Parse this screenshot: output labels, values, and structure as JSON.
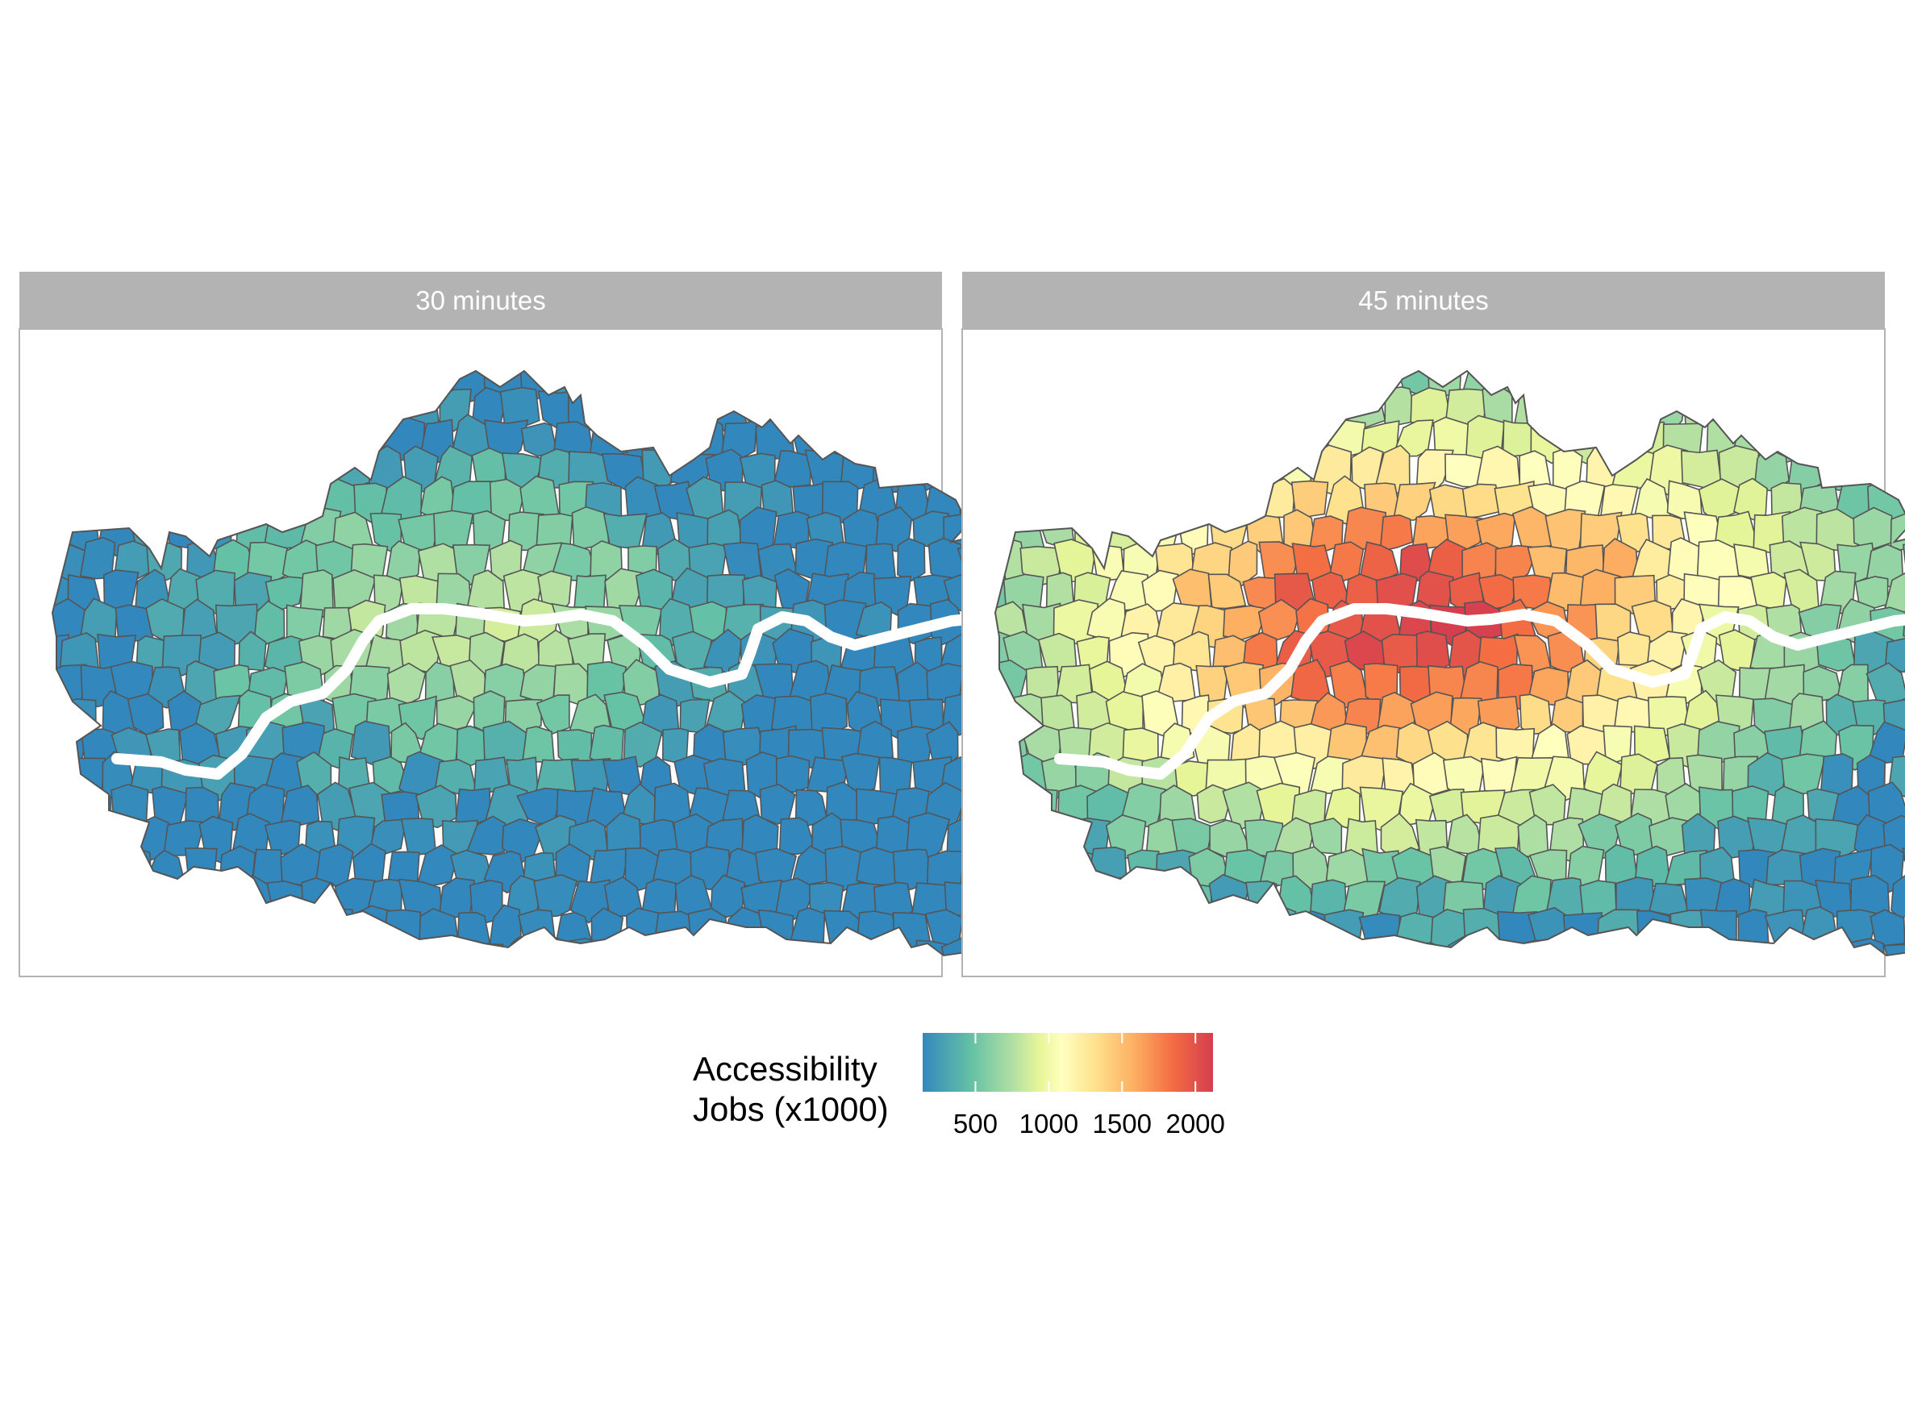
{
  "panels": [
    {
      "id": "p30",
      "label": "30 minutes",
      "level": 0.18
    },
    {
      "id": "p45",
      "label": "45 minutes",
      "level": 0.55
    }
  ],
  "legend": {
    "title_line1": "Accessibility",
    "title_line2": "Jobs (x1000)",
    "ticks": [
      {
        "value": 500,
        "label": "500"
      },
      {
        "value": 1000,
        "label": "1000"
      },
      {
        "value": 1500,
        "label": "1500"
      },
      {
        "value": 2000,
        "label": "2000"
      }
    ],
    "range": [
      140,
      2120
    ],
    "palette": [
      "#3288bd",
      "#66c2a5",
      "#abdda4",
      "#e6f598",
      "#ffffbf",
      "#fee08b",
      "#fdae61",
      "#f46d43",
      "#d53e4f"
    ]
  },
  "colors": {
    "strip_background": "#b3b3b3",
    "panel_border": "#b3b3b3",
    "zone_border": "#555555",
    "river": "#ffffff"
  }
}
